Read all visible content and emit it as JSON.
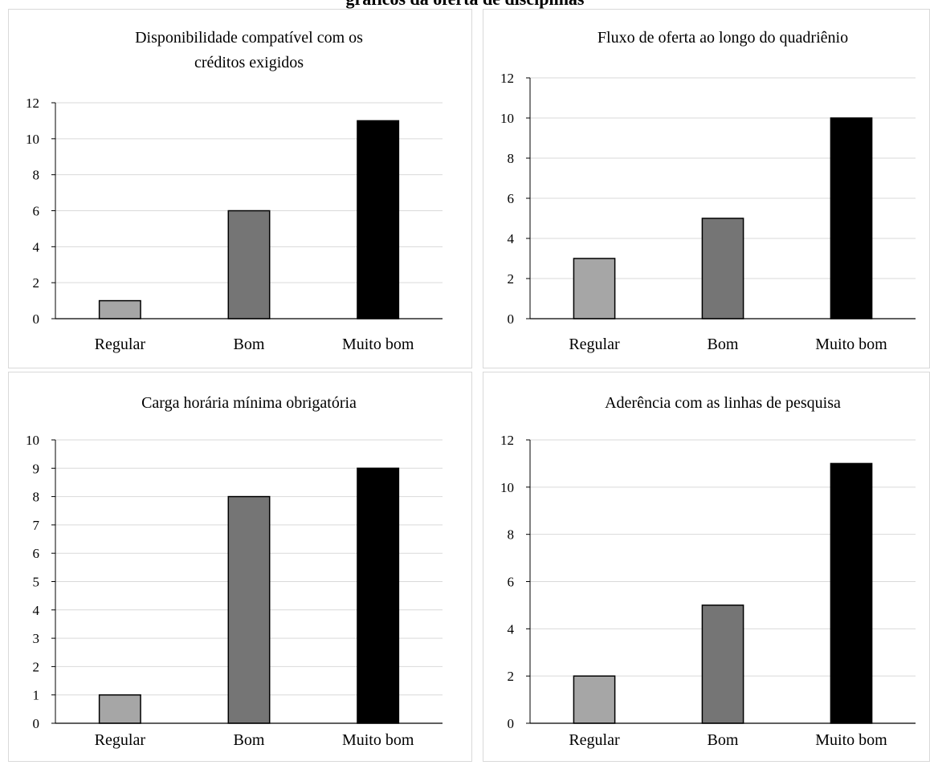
{
  "page": {
    "title": "gráficos da oferta de disciplinas"
  },
  "colors": {
    "regular": "#a6a6a6",
    "bom": "#757575",
    "muito_bom": "#000000",
    "grid": "#d9d9d9",
    "axis": "#000000"
  },
  "chart_data": [
    {
      "type": "bar",
      "title_lines": [
        "Disponibilidade compatível com os",
        "créditos exigidos"
      ],
      "categories": [
        "Regular",
        "Bom",
        "Muito bom"
      ],
      "values": [
        1,
        6,
        11
      ],
      "ylim": [
        0,
        12
      ],
      "yticks": [
        0,
        2,
        4,
        6,
        8,
        10,
        12
      ],
      "grid": true,
      "legend": "none"
    },
    {
      "type": "bar",
      "title_lines": [
        "Fluxo de oferta ao longo do quadriênio"
      ],
      "categories": [
        "Regular",
        "Bom",
        "Muito bom"
      ],
      "values": [
        3,
        5,
        10
      ],
      "ylim": [
        0,
        12
      ],
      "yticks": [
        0,
        2,
        4,
        6,
        8,
        10,
        12
      ],
      "grid": true,
      "legend": "none"
    },
    {
      "type": "bar",
      "title_lines": [
        "Carga horária mínima obrigatória"
      ],
      "categories": [
        "Regular",
        "Bom",
        "Muito bom"
      ],
      "values": [
        1,
        8,
        9
      ],
      "ylim": [
        0,
        10
      ],
      "yticks": [
        0,
        1,
        2,
        3,
        4,
        5,
        6,
        7,
        8,
        9,
        10
      ],
      "grid": true,
      "legend": "none"
    },
    {
      "type": "bar",
      "title_lines": [
        "Aderência com as linhas de pesquisa"
      ],
      "categories": [
        "Regular",
        "Bom",
        "Muito bom"
      ],
      "values": [
        2,
        5,
        11
      ],
      "ylim": [
        0,
        12
      ],
      "yticks": [
        0,
        2,
        4,
        6,
        8,
        10,
        12
      ],
      "grid": true,
      "legend": "none"
    }
  ]
}
